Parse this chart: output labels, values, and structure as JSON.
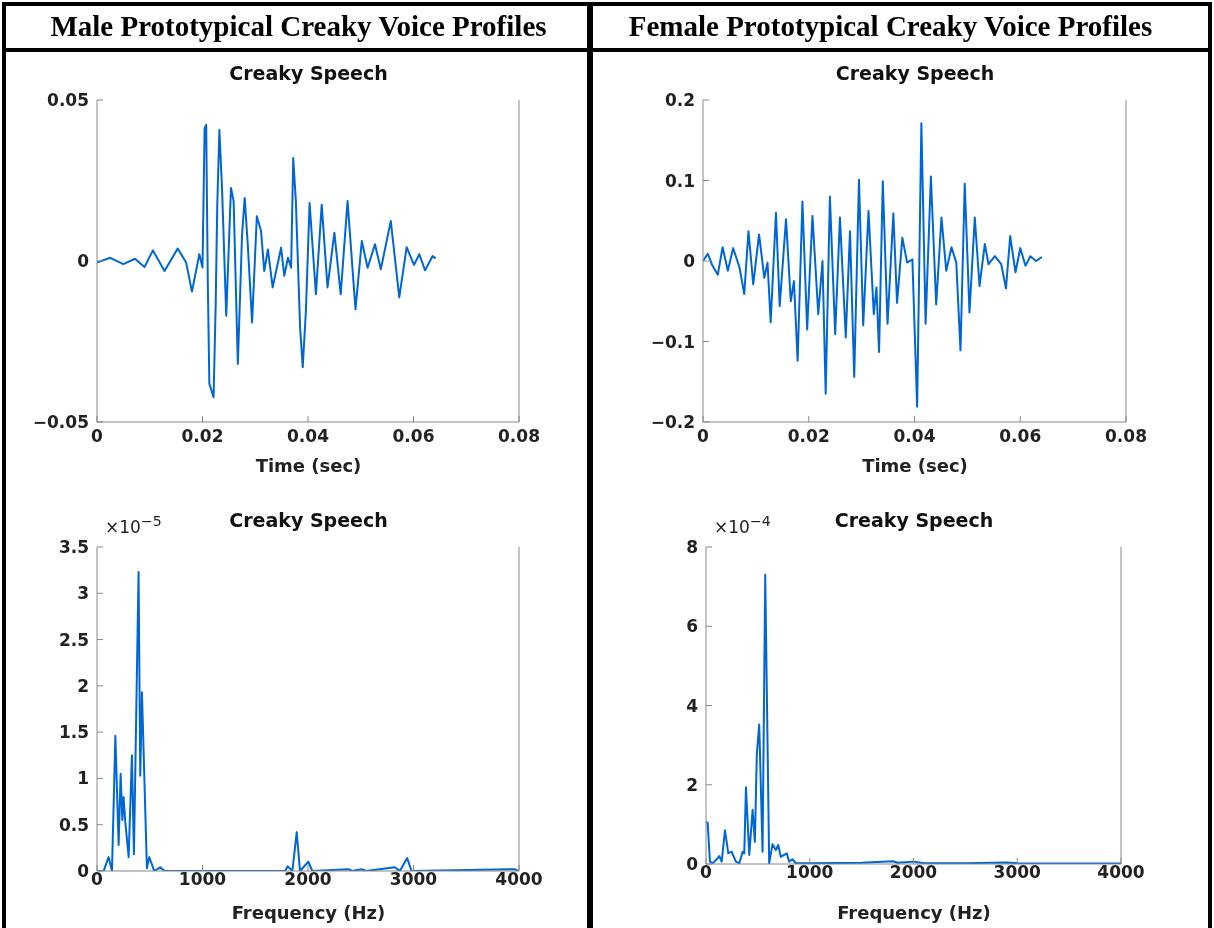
{
  "chart_data": [
    {
      "type": "line",
      "title": "Creaky Speech",
      "xlabel": "Time (sec)",
      "annotations": [
        "Male Prototypical Creaky Voice Profiles"
      ],
      "color": "#0066d4",
      "xlim": [
        0,
        0.08
      ],
      "xticks": [
        0,
        0.02,
        0.04,
        0.06,
        0.08
      ],
      "ylim": [
        -0.05,
        0.05
      ],
      "yticks": [
        {
          "value": -0.05,
          "label": "−0.05"
        },
        0,
        0.05
      ],
      "x": [
        0,
        0.0025,
        0.005,
        0.0072,
        0.009,
        0.0106,
        0.0128,
        0.0153,
        0.0169,
        0.018,
        0.0194,
        0.02,
        0.0204,
        0.0207,
        0.021,
        0.0213,
        0.0221,
        0.0225,
        0.0228,
        0.0232,
        0.0237,
        0.0245,
        0.0254,
        0.0259,
        0.0267,
        0.0275,
        0.028,
        0.0286,
        0.0294,
        0.0303,
        0.0311,
        0.0317,
        0.0324,
        0.0333,
        0.0349,
        0.0355,
        0.0362,
        0.0368,
        0.0372,
        0.0377,
        0.0385,
        0.039,
        0.0396,
        0.0403,
        0.0415,
        0.0426,
        0.0437,
        0.045,
        0.0462,
        0.0475,
        0.049,
        0.0502,
        0.0513,
        0.0527,
        0.0538,
        0.0557,
        0.0573,
        0.0587,
        0.0601,
        0.0611,
        0.0622,
        0.0636,
        0.0642
      ],
      "values": [
        -0.0005,
        0.001,
        -0.001,
        0.0007,
        -0.0019,
        0.0033,
        -0.0031,
        0.0039,
        -0.0005,
        -0.0095,
        0.0021,
        -0.002,
        0.0412,
        0.0423,
        -0.006,
        -0.0381,
        -0.0423,
        -0.0134,
        0.0175,
        0.0407,
        0.0227,
        -0.017,
        0.0227,
        0.0186,
        -0.032,
        0.0082,
        0.0196,
        0.0046,
        -0.0191,
        0.0139,
        0.0093,
        -0.0031,
        0.0036,
        -0.0082,
        0.0041,
        -0.0046,
        0.001,
        -0.0021,
        0.032,
        0.0186,
        -0.0206,
        -0.033,
        -0.0155,
        0.018,
        -0.0103,
        0.0175,
        -0.0082,
        0.0088,
        -0.0103,
        0.0186,
        -0.015,
        0.0062,
        -0.0021,
        0.0052,
        -0.0026,
        0.0124,
        -0.0113,
        0.0043,
        -0.0012,
        0.0021,
        -0.0029,
        0.0015,
        0.0008
      ]
    },
    {
      "type": "line",
      "title": "Creaky Speech",
      "xlabel": "Time (sec)",
      "annotations": [
        "Female Prototypical Creaky Voice Profiles"
      ],
      "color": "#0066d4",
      "xlim": [
        0,
        0.08
      ],
      "xticks": [
        0,
        0.02,
        0.04,
        0.06,
        0.08
      ],
      "ylim": [
        -0.2,
        0.2
      ],
      "yticks": [
        {
          "value": -0.2,
          "label": "−0.2"
        },
        {
          "value": -0.1,
          "label": "−0.1"
        },
        0,
        0.1,
        0.2
      ],
      "x": [
        0,
        0.0009,
        0.0018,
        0.0028,
        0.0037,
        0.0047,
        0.0057,
        0.0069,
        0.0078,
        0.0086,
        0.0095,
        0.0106,
        0.0116,
        0.0122,
        0.0128,
        0.0138,
        0.0145,
        0.0157,
        0.0166,
        0.0172,
        0.0179,
        0.0188,
        0.0197,
        0.0207,
        0.0218,
        0.0226,
        0.0232,
        0.024,
        0.025,
        0.0259,
        0.027,
        0.0278,
        0.0286,
        0.0295,
        0.0303,
        0.0313,
        0.0323,
        0.0328,
        0.0333,
        0.034,
        0.0349,
        0.036,
        0.0367,
        0.0377,
        0.0386,
        0.0396,
        0.0405,
        0.0413,
        0.0421,
        0.0431,
        0.0441,
        0.0451,
        0.046,
        0.047,
        0.0479,
        0.0487,
        0.0495,
        0.0504,
        0.0514,
        0.0523,
        0.0533,
        0.054,
        0.0552,
        0.0564,
        0.0573,
        0.0581,
        0.0591,
        0.06,
        0.061,
        0.0619,
        0.063,
        0.0641
      ],
      "values": [
        0,
        0.009,
        -0.006,
        -0.017,
        0.017,
        -0.012,
        0.016,
        -0.008,
        -0.041,
        0.037,
        -0.029,
        0.033,
        -0.021,
        -0.002,
        -0.076,
        0.06,
        -0.056,
        0.052,
        -0.05,
        -0.025,
        -0.124,
        0.074,
        -0.085,
        0.056,
        -0.066,
        0,
        -0.165,
        0.08,
        -0.091,
        0.054,
        -0.095,
        0.037,
        -0.144,
        0.101,
        -0.08,
        0.062,
        -0.066,
        -0.033,
        -0.113,
        0.099,
        -0.078,
        0.059,
        -0.052,
        0.029,
        -0.002,
        0.002,
        -0.181,
        0.171,
        -0.078,
        0.105,
        -0.054,
        0.054,
        -0.012,
        0.017,
        -0.002,
        -0.111,
        0.096,
        -0.064,
        0.054,
        -0.031,
        0.021,
        -0.004,
        0.006,
        -0.004,
        -0.034,
        0.031,
        -0.014,
        0.016,
        -0.006,
        0.006,
        0,
        0.005
      ]
    },
    {
      "type": "line",
      "title": "Creaky Speech",
      "xlabel": "Frequency (Hz)",
      "annotations": [
        "×10$^{−5}$"
      ],
      "color": "#0066d4",
      "xlim": [
        0,
        4000
      ],
      "xticks": [
        0,
        1000,
        2000,
        3000,
        4000
      ],
      "ylim": [
        0,
        3.5
      ],
      "yticks": [
        0,
        0.5,
        1,
        1.5,
        2,
        2.5,
        3,
        3.5
      ],
      "x": [
        0,
        63,
        110,
        142,
        174,
        205,
        224,
        240,
        252,
        268,
        300,
        331,
        350,
        394,
        410,
        426,
        473,
        495,
        543,
        600,
        640,
        1782,
        1808,
        1852,
        1893,
        1924,
        2003,
        2041,
        2382,
        2420,
        2508,
        2550,
        2823,
        2871,
        2940,
        2981,
        3959,
        3991
      ],
      "values": [
        0,
        0,
        0.15,
        0,
        1.46,
        0.28,
        1.05,
        0.55,
        0.8,
        0.53,
        0.15,
        1.25,
        0.18,
        3.23,
        1.03,
        1.93,
        0.03,
        0.15,
        0,
        0.04,
        0,
        0,
        0.05,
        0,
        0.42,
        0,
        0.1,
        0,
        0.02,
        0,
        0.02,
        0,
        0.04,
        0,
        0.14,
        0,
        0.02,
        0
      ]
    },
    {
      "type": "line",
      "title": "Creaky Speech",
      "xlabel": "Frequency (Hz)",
      "annotations": [
        "×10$^{−4}$"
      ],
      "color": "#0066d4",
      "xlim": [
        0,
        4000
      ],
      "xticks": [
        0,
        1000,
        2000,
        3000,
        4000
      ],
      "ylim": [
        0,
        8
      ],
      "yticks": [
        0,
        2,
        4,
        6,
        8
      ],
      "x": [
        0,
        16,
        38,
        64,
        96,
        128,
        151,
        183,
        215,
        247,
        288,
        321,
        353,
        369,
        385,
        417,
        449,
        471,
        490,
        513,
        545,
        571,
        609,
        641,
        673,
        696,
        721,
        753,
        779,
        801,
        833,
        865,
        1000,
        1500,
        1800,
        1850,
        2000,
        2100,
        2500,
        2900,
        3000,
        3500,
        4000
      ],
      "values": [
        1.06,
        1.04,
        0.06,
        0.02,
        0.1,
        0.2,
        0.06,
        0.85,
        0.27,
        0.31,
        0.06,
        0.02,
        0.31,
        0.27,
        1.94,
        0.23,
        1.37,
        0.56,
        2.78,
        3.52,
        0.31,
        7.3,
        0.02,
        0.5,
        0.35,
        0.48,
        0.18,
        0.23,
        0.27,
        0.06,
        0.12,
        0.02,
        0.02,
        0.03,
        0.07,
        0.03,
        0.06,
        0.02,
        0.02,
        0.04,
        0.02,
        0.01,
        0.01
      ]
    }
  ]
}
